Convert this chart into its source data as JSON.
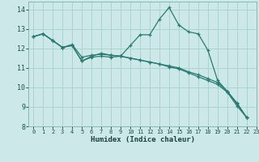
{
  "title": "",
  "xlabel": "Humidex (Indice chaleur)",
  "xlim": [
    -0.5,
    23
  ],
  "ylim": [
    8,
    14.4
  ],
  "yticks": [
    8,
    9,
    10,
    11,
    12,
    13,
    14
  ],
  "xticks": [
    0,
    1,
    2,
    3,
    4,
    5,
    6,
    7,
    8,
    9,
    10,
    11,
    12,
    13,
    14,
    15,
    16,
    17,
    18,
    19,
    20,
    21,
    22,
    23
  ],
  "bg_color": "#cce8e8",
  "line_color": "#2a7a72",
  "grid_color": "#aad4d0",
  "lines": [
    {
      "x": [
        0,
        1,
        2,
        3,
        4,
        5,
        6,
        7,
        8,
        9,
        10,
        11,
        12,
        13,
        14,
        15,
        16,
        17,
        18,
        19,
        20,
        21,
        22
      ],
      "y": [
        12.6,
        12.75,
        12.4,
        12.05,
        12.15,
        11.35,
        11.6,
        11.75,
        11.65,
        11.6,
        12.15,
        12.7,
        12.7,
        13.5,
        14.1,
        13.2,
        12.85,
        12.75,
        11.9,
        10.35,
        9.8,
        9.2,
        8.45
      ]
    },
    {
      "x": [
        0,
        1,
        2,
        3,
        4,
        5,
        6,
        7,
        8,
        9,
        10,
        11,
        12,
        13,
        14,
        15,
        16,
        17,
        18,
        19,
        20,
        21,
        22
      ],
      "y": [
        12.6,
        12.75,
        12.4,
        12.05,
        12.15,
        11.35,
        11.55,
        11.6,
        11.55,
        11.6,
        11.5,
        11.4,
        11.3,
        11.2,
        11.1,
        11.0,
        10.8,
        10.65,
        10.45,
        10.25,
        9.8,
        9.15,
        8.45
      ]
    },
    {
      "x": [
        0,
        1,
        2,
        3,
        4,
        5,
        6,
        7,
        8,
        9,
        10,
        11,
        12,
        13,
        14,
        15,
        16,
        17,
        18,
        19,
        20,
        21,
        22
      ],
      "y": [
        12.6,
        12.75,
        12.4,
        12.05,
        12.2,
        11.55,
        11.65,
        11.7,
        11.65,
        11.6,
        11.5,
        11.4,
        11.3,
        11.2,
        11.05,
        10.95,
        10.75,
        10.55,
        10.35,
        10.15,
        9.75,
        9.05,
        8.45
      ]
    }
  ]
}
